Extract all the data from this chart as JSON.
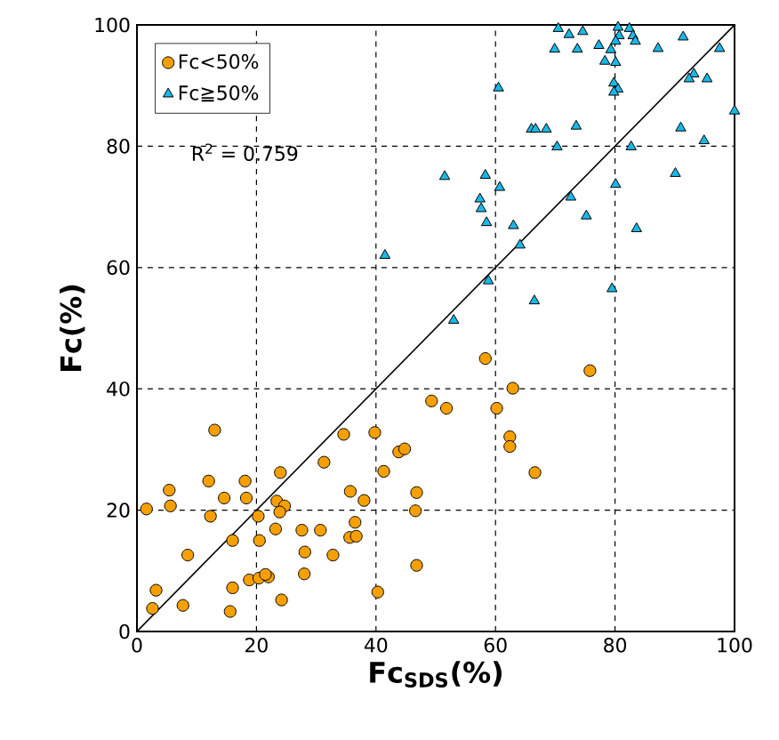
{
  "chart_data": {
    "type": "scatter",
    "xlabel": "Fc$_{SDS}$(%)",
    "ylabel": "Fc(%)",
    "xlim": [
      0,
      100
    ],
    "ylim": [
      0,
      100
    ],
    "xticks": [
      0,
      20,
      40,
      60,
      80,
      100
    ],
    "yticks": [
      0,
      20,
      40,
      60,
      80,
      100
    ],
    "grid": true,
    "legend": "top left",
    "annotations": [
      "R$^{2}$ = 0.759"
    ],
    "series": [
      {
        "name": "Fc<50%",
        "color": "#f5a000",
        "marker": "circle",
        "x": [
          13.0,
          1.6,
          5.4,
          5.6,
          3.2,
          2.6,
          7.7,
          8.5,
          12.0,
          12.3,
          14.6,
          16.0,
          16.0,
          15.6,
          18.1,
          18.3,
          18.8,
          20.4,
          22.0,
          21.5,
          20.3,
          20.5,
          24.0,
          23.4,
          24.7,
          23.9,
          23.2,
          24.2,
          27.6,
          30.7,
          28.1,
          28.0,
          31.3,
          32.8,
          34.6,
          35.7,
          36.5,
          35.6,
          36.7,
          38.0,
          39.8,
          41.3,
          40.3,
          43.8,
          44.8,
          46.8,
          46.6,
          46.8,
          49.3,
          51.8,
          58.3,
          62.9,
          60.2,
          62.4,
          62.4,
          66.6,
          75.8
        ],
        "values": [
          33.2,
          20.2,
          23.3,
          20.7,
          6.8,
          3.8,
          4.3,
          12.6,
          24.8,
          19.0,
          22.0,
          15.0,
          7.2,
          3.3,
          24.8,
          22.0,
          8.5,
          8.8,
          9.0,
          9.4,
          19.0,
          15.0,
          26.2,
          21.5,
          20.7,
          19.7,
          16.9,
          5.2,
          16.7,
          16.7,
          13.1,
          9.5,
          27.9,
          12.6,
          32.5,
          23.1,
          18.0,
          15.5,
          15.7,
          21.6,
          32.8,
          26.4,
          6.5,
          29.6,
          30.1,
          22.9,
          19.9,
          10.9,
          38.0,
          36.8,
          45.0,
          40.1,
          36.8,
          32.1,
          30.5,
          26.2,
          43.0
        ]
      },
      {
        "name": "Fc≧50%",
        "color": "#1ab8e8",
        "marker": "triangle",
        "x": [
          70.5,
          72.3,
          74.6,
          80.5,
          82.4,
          80.7,
          83.0,
          83.4,
          91.4,
          69.9,
          73.7,
          77.3,
          79.3,
          80.1,
          87.2,
          97.5,
          78.3,
          80.1,
          79.8,
          80.5,
          79.8,
          93.2,
          92.4,
          95.4,
          60.5,
          100,
          66.0,
          66.7,
          68.5,
          73.5,
          91.0,
          70.3,
          82.7,
          94.9,
          51.5,
          58.3,
          60.7,
          90.1,
          80.1,
          57.4,
          57.6,
          58.5,
          72.6,
          63.0,
          75.2,
          83.6,
          64.1,
          58.8,
          79.5,
          66.5,
          53.0,
          41.5
        ],
        "values": [
          99.4,
          98.4,
          98.9,
          99.6,
          99.4,
          98.2,
          98.2,
          97.3,
          98.0,
          96.0,
          96.0,
          96.6,
          95.9,
          97.3,
          96.1,
          96.1,
          94.0,
          93.8,
          90.4,
          89.4,
          88.9,
          91.9,
          91.1,
          91.1,
          89.6,
          85.8,
          82.8,
          82.8,
          82.8,
          83.3,
          83.0,
          79.9,
          79.9,
          80.9,
          75.0,
          75.2,
          73.2,
          75.5,
          73.7,
          71.3,
          69.7,
          67.4,
          71.6,
          66.9,
          68.5,
          66.4,
          63.7,
          57.8,
          56.5,
          54.5,
          51.3,
          62.0
        ]
      },
      {
        "type": "line",
        "color": "#000000",
        "marker": "none",
        "x": [
          0,
          100
        ],
        "values": [
          0,
          100
        ]
      }
    ]
  }
}
